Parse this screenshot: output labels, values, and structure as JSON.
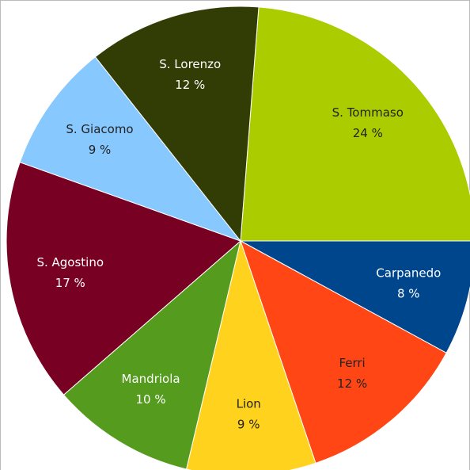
{
  "chart_data": {
    "type": "pie",
    "categories": [
      "S. Tommaso",
      "Carpanedo",
      "Ferri",
      "Lion",
      "Mandriola",
      "S. Agostino",
      "S. Giacomo",
      "S. Lorenzo"
    ],
    "values": [
      24,
      8,
      12,
      9,
      10,
      17,
      9,
      12
    ],
    "value_labels": [
      "24 %",
      "8 %",
      "12 %",
      "9 %",
      "10 %",
      "17 %",
      "9 %",
      "12 %"
    ],
    "colors": [
      "#abcd00",
      "#00468c",
      "#ff4614",
      "#ffd21e",
      "#559b1e",
      "#780023",
      "#87c8ff",
      "#323c05"
    ],
    "label_colors": [
      "#222222",
      "#ffffff",
      "#222222",
      "#222222",
      "#ffffff",
      "#ffffff",
      "#222222",
      "#ffffff"
    ]
  }
}
